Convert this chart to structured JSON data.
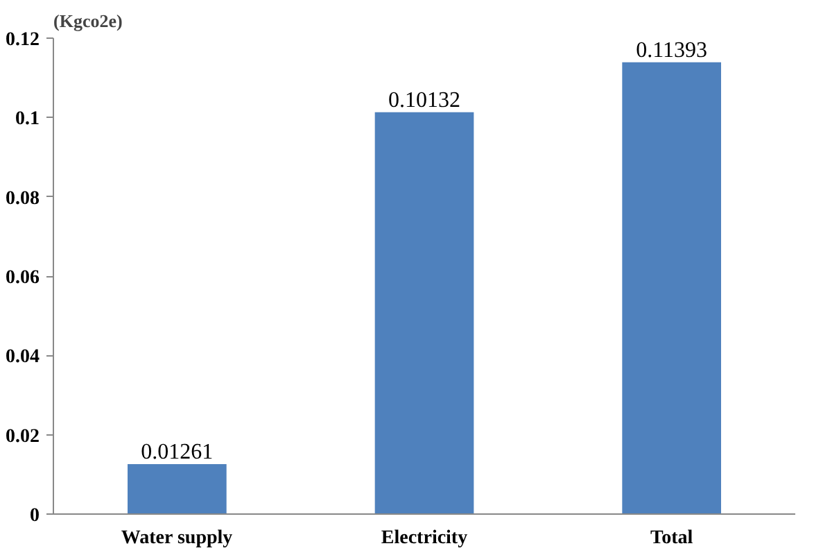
{
  "chart_data": {
    "type": "bar",
    "ylabel": "(Kgco2e)",
    "categories": [
      "Water supply",
      "Electricity",
      "Total"
    ],
    "values": [
      0.01261,
      0.10132,
      0.11393
    ],
    "color": "#4f81bd",
    "ylim": [
      0,
      0.12
    ],
    "yticks": [
      0,
      0.02,
      0.04,
      0.06,
      0.08,
      0.1,
      0.12
    ],
    "data_labels": true
  }
}
